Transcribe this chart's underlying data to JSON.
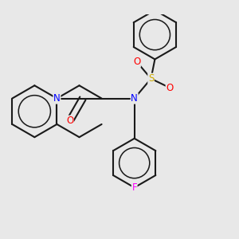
{
  "background_color": "#e8e8e8",
  "bond_color": "#1a1a1a",
  "bond_width": 1.5,
  "atom_colors": {
    "N": "#0000ff",
    "O": "#ff0000",
    "S": "#ccaa00",
    "F": "#ff00ff",
    "C": "#1a1a1a"
  },
  "font_size": 8.5,
  "fig_size": [
    3.0,
    3.0
  ],
  "dpi": 100
}
